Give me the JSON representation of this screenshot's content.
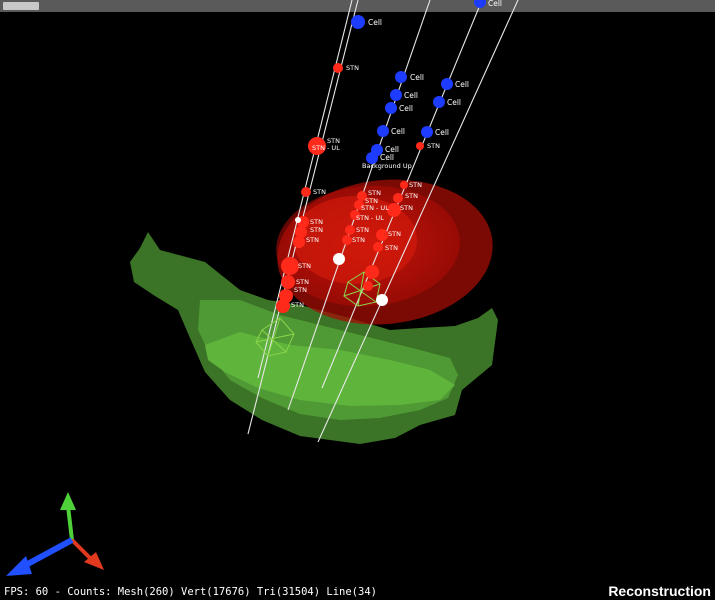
{
  "window": {
    "view_title": "Reconstruction"
  },
  "status": {
    "text": "FPS: 60 - Counts: Mesh(260) Vert(17676) Tri(31504) Line(34)"
  },
  "colors": {
    "background": "#000000",
    "structure_green": "#5aa83a",
    "structure_red": "#e02010",
    "stn_marker": "#ff2a1a",
    "cell_marker": "#1e3cff",
    "electrode_line": "#e8e8e8",
    "axis_x": "#e23a1e",
    "axis_y": "#4fd13a",
    "axis_z": "#2050ff"
  },
  "labels": {
    "cell": "Cell",
    "stn": "STN",
    "stn_ul": "STN - UL",
    "background_up": "Background Up"
  },
  "icons": {
    "axes": "xyz-axes-icon",
    "electrode_marker": "wireframe-polyhedron-icon"
  }
}
